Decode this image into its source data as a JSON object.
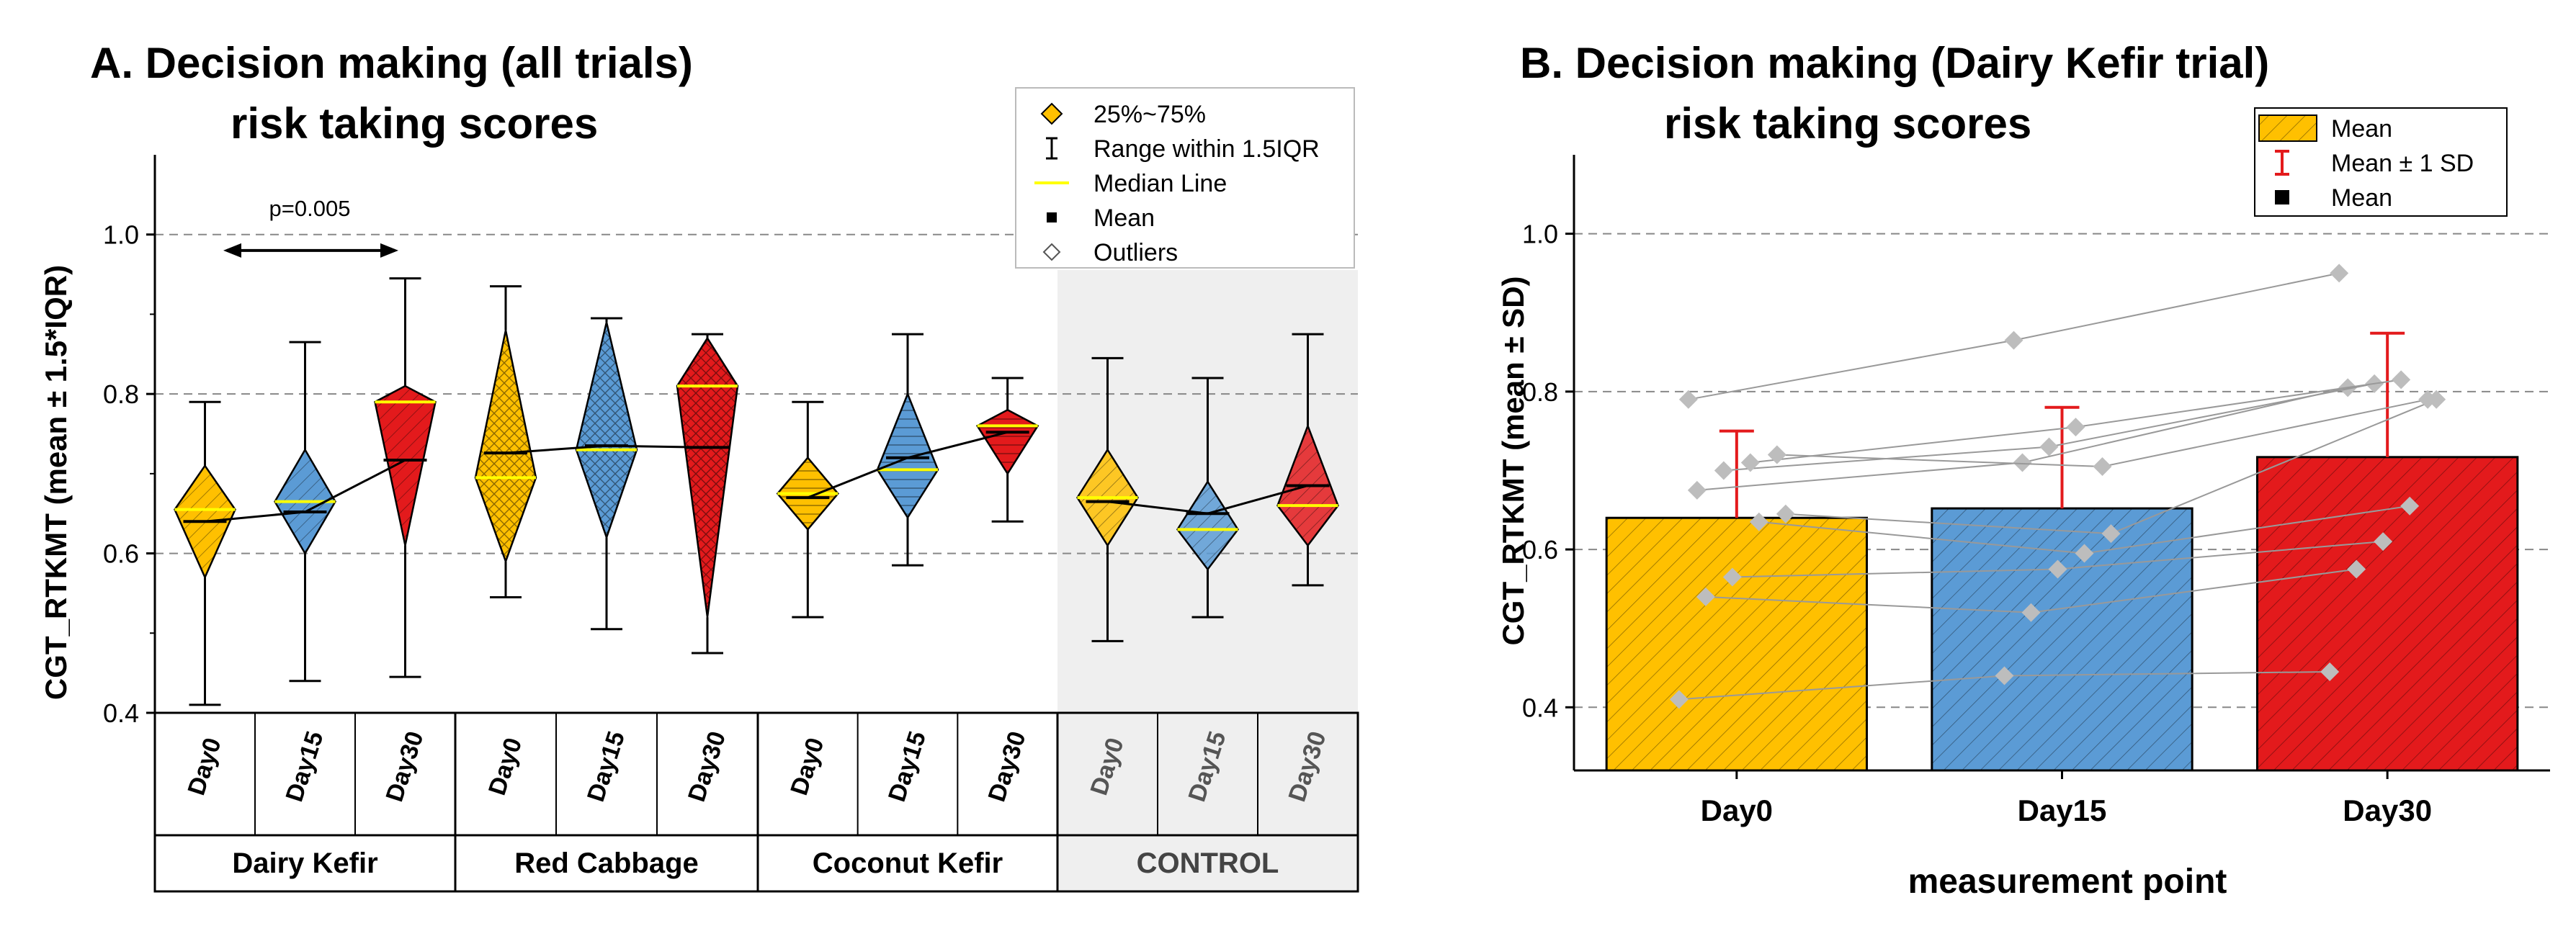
{
  "colors": {
    "dairy_fill": "#FFC000",
    "cabbage_fill": "#5B9BD5",
    "coconut_fill": "#E31A1C",
    "median_line": "#FFFF00",
    "mean_line": "#000000",
    "grid": "#888888",
    "control_bg": "#EFEFEF",
    "outline": "#000000",
    "points": "#BDBDBD",
    "sd_bar": "#E31A1C"
  },
  "chart_data": [
    {
      "type": "box",
      "title_line1": "A. Decision making (all trials)",
      "title_line2": "risk taking scores",
      "ylabel": "CGT_RTKMT (mean ± 1.5*IQR)",
      "ylim": [
        0.4,
        1.1
      ],
      "yticks": [
        "0.4",
        "0.6",
        "0.8",
        "1.0"
      ],
      "grid_dashed_at": [
        0.6,
        0.8,
        1.0
      ],
      "annotation": "p=0.005",
      "legend": {
        "placement": "top-right",
        "items": [
          "25%~75%",
          "Range within 1.5IQR",
          "Median Line",
          "Mean",
          "Outliers"
        ]
      },
      "groups": [
        {
          "name": "Dairy Kefir",
          "shaded": false,
          "boxes": [
            {
              "x": "Day0",
              "color": "dairy",
              "pattern": "diag",
              "q1": 0.57,
              "q3": 0.71,
              "median": 0.655,
              "mean": 0.64,
              "min": 0.41,
              "max": 0.79
            },
            {
              "x": "Day15",
              "color": "cabbage",
              "pattern": "diag",
              "q1": 0.6,
              "q3": 0.73,
              "median": 0.665,
              "mean": 0.652,
              "min": 0.44,
              "max": 0.865
            },
            {
              "x": "Day30",
              "color": "coconut",
              "pattern": "diag",
              "q1": 0.61,
              "q3": 0.81,
              "median": 0.79,
              "mean": 0.717,
              "min": 0.445,
              "max": 0.945
            }
          ]
        },
        {
          "name": "Red Cabbage",
          "shaded": false,
          "boxes": [
            {
              "x": "Day0",
              "color": "dairy",
              "pattern": "cross",
              "q1": 0.59,
              "q3": 0.88,
              "median": 0.695,
              "mean": 0.726,
              "min": 0.545,
              "max": 0.935
            },
            {
              "x": "Day15",
              "color": "cabbage",
              "pattern": "cross",
              "q1": 0.62,
              "q3": 0.89,
              "median": 0.73,
              "mean": 0.735,
              "min": 0.505,
              "max": 0.895
            },
            {
              "x": "Day30",
              "color": "coconut",
              "pattern": "cross",
              "q1": 0.52,
              "q3": 0.87,
              "median": 0.81,
              "mean": 0.733,
              "min": 0.475,
              "max": 0.875
            }
          ]
        },
        {
          "name": "Coconut Kefir",
          "shaded": false,
          "boxes": [
            {
              "x": "Day0",
              "color": "dairy",
              "pattern": "horiz",
              "q1": 0.63,
              "q3": 0.72,
              "median": 0.675,
              "mean": 0.67,
              "min": 0.52,
              "max": 0.79
            },
            {
              "x": "Day15",
              "color": "cabbage",
              "pattern": "horiz",
              "q1": 0.645,
              "q3": 0.8,
              "median": 0.705,
              "mean": 0.72,
              "min": 0.585,
              "max": 0.875
            },
            {
              "x": "Day30",
              "color": "coconut",
              "pattern": "horiz",
              "q1": 0.7,
              "q3": 0.78,
              "median": 0.76,
              "mean": 0.752,
              "min": 0.64,
              "max": 0.82
            }
          ]
        },
        {
          "name": "CONTROL",
          "shaded": true,
          "boxes": [
            {
              "x": "Day0",
              "color": "dairy",
              "pattern": "diag",
              "q1": 0.61,
              "q3": 0.73,
              "median": 0.67,
              "mean": 0.665,
              "min": 0.49,
              "max": 0.845
            },
            {
              "x": "Day15",
              "color": "cabbage",
              "pattern": "diag",
              "q1": 0.58,
              "q3": 0.69,
              "median": 0.63,
              "mean": 0.65,
              "min": 0.52,
              "max": 0.82
            },
            {
              "x": "Day30",
              "color": "coconut",
              "pattern": "diag",
              "q1": 0.61,
              "q3": 0.76,
              "median": 0.66,
              "mean": 0.685,
              "min": 0.56,
              "max": 0.875
            }
          ]
        }
      ]
    },
    {
      "type": "bar",
      "title_line1": "B. Decision making (Dairy Kefir trial)",
      "title_line2": "risk taking scores",
      "xlabel": "measurement point",
      "ylabel": "CGT_RTKMT (mean ± SD)",
      "ylim": [
        0.32,
        1.1
      ],
      "yticks": [
        "0.4",
        "0.6",
        "0.8",
        "1.0"
      ],
      "grid_dashed_at": [
        0.4,
        0.6,
        0.8,
        1.0
      ],
      "categories": [
        "Day0",
        "Day15",
        "Day30"
      ],
      "values": [
        0.64,
        0.652,
        0.717
      ],
      "sd": [
        0.11,
        0.128,
        0.157
      ],
      "bar_colors": [
        "dairy",
        "cabbage",
        "coconut"
      ],
      "legend": {
        "placement": "top-right",
        "items": [
          "Mean",
          "Mean ± 1 SD",
          "Mean"
        ]
      },
      "points": [
        [
          0.41,
          0.44,
          0.445
        ],
        [
          0.54,
          0.52,
          0.575
        ],
        [
          0.565,
          0.575,
          0.61
        ],
        [
          0.635,
          0.595,
          0.655
        ],
        [
          0.645,
          0.62,
          0.79
        ],
        [
          0.675,
          0.71,
          0.805
        ],
        [
          0.7,
          0.73,
          0.81
        ],
        [
          0.71,
          0.755,
          0.815
        ],
        [
          0.72,
          0.705,
          0.79
        ],
        [
          0.79,
          0.865,
          0.95
        ]
      ]
    }
  ]
}
